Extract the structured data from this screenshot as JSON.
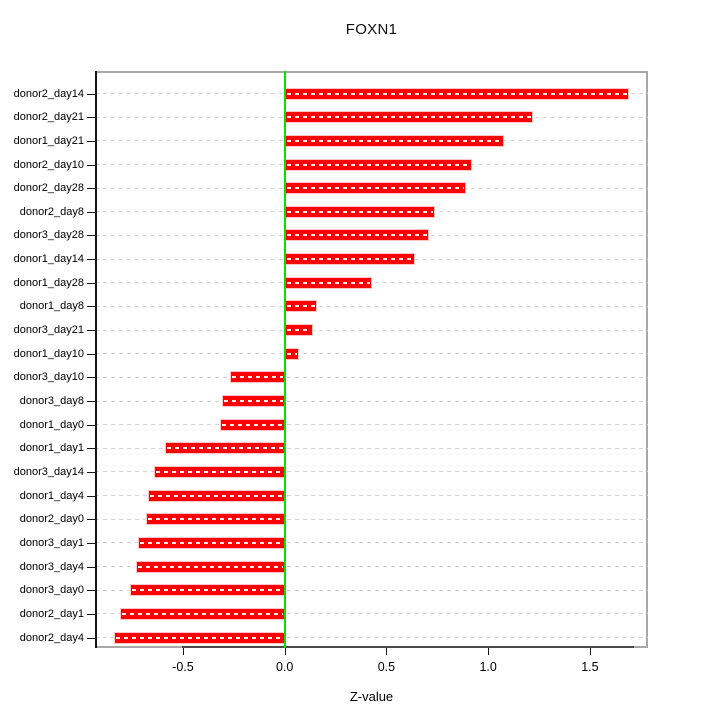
{
  "chart_data": {
    "type": "bar",
    "orientation": "horizontal",
    "title": "FOXN1",
    "xlabel": "Z-value",
    "categories": [
      "donor2_day14",
      "donor2_day21",
      "donor1_day21",
      "donor2_day10",
      "donor2_day28",
      "donor2_day8",
      "donor3_day28",
      "donor1_day14",
      "donor1_day28",
      "donor1_day8",
      "donor3_day21",
      "donor1_day10",
      "donor3_day10",
      "donor3_day8",
      "donor1_day0",
      "donor1_day1",
      "donor3_day14",
      "donor1_day4",
      "donor2_day0",
      "donor3_day1",
      "donor3_day4",
      "donor3_day0",
      "donor2_day1",
      "donor2_day4"
    ],
    "values": [
      1.69,
      1.22,
      1.08,
      0.92,
      0.89,
      0.74,
      0.71,
      0.64,
      0.43,
      0.16,
      0.14,
      0.07,
      -0.27,
      -0.31,
      -0.32,
      -0.59,
      -0.64,
      -0.67,
      -0.68,
      -0.72,
      -0.73,
      -0.76,
      -0.81,
      -0.84
    ],
    "xticks": [
      -0.5,
      0.0,
      0.5,
      1.0,
      1.5
    ],
    "xtick_labels": [
      "-0.5",
      "0.0",
      "0.5",
      "1.0",
      "1.5"
    ],
    "xlim": [
      -0.93,
      1.79
    ],
    "grid": "horizontal-dashed-per-row",
    "legend": "none",
    "bar_color": "#ff0000",
    "bar_border_color": "#ffc6c6",
    "bar_dash_color": "#ffffff",
    "zero_line_color": "#00e400",
    "gridline_color": "#d6d6d6",
    "box_color": "#a8a8a8",
    "axis_color": "#141414"
  }
}
